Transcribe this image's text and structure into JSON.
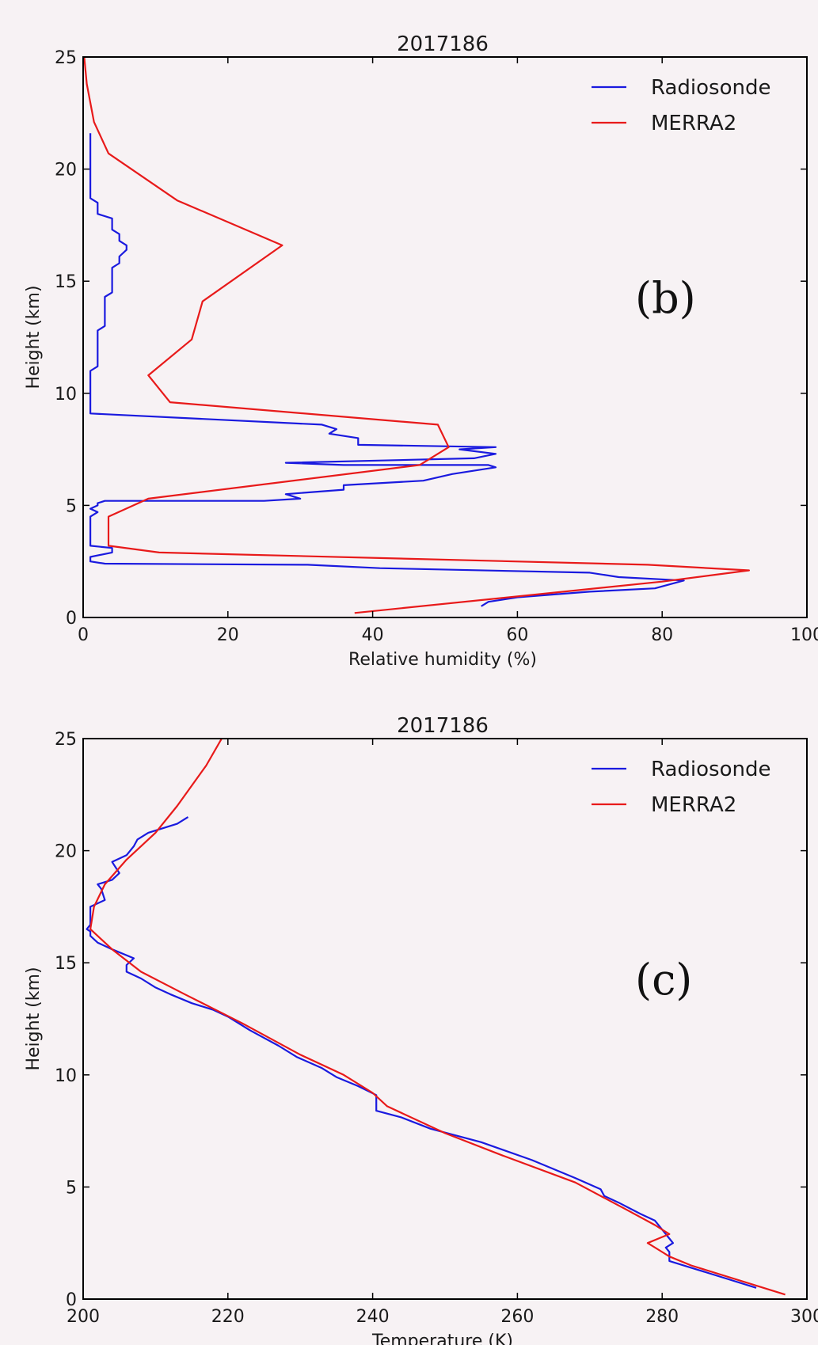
{
  "chart_data": [
    {
      "type": "line",
      "title": "2017186",
      "xlabel": "Relative humidity (%)",
      "ylabel": "Height (km)",
      "xlim": [
        0,
        100
      ],
      "ylim": [
        0,
        25
      ],
      "xticks": [
        0,
        20,
        40,
        60,
        80,
        100
      ],
      "xtick_labels": [
        "0",
        "20",
        "40",
        "60",
        "80",
        "100"
      ],
      "yticks": [
        0,
        5,
        10,
        15,
        20,
        25
      ],
      "ytick_labels": [
        "0",
        "5",
        "10",
        "15",
        "20",
        "25"
      ],
      "legend_position": "top-right",
      "annotation": "(b)",
      "grid": false,
      "series": [
        {
          "name": "Radiosonde",
          "color": "#1a1adf",
          "x": [
            55,
            56,
            60,
            70,
            79,
            83,
            74,
            70,
            41,
            31,
            3,
            1,
            1,
            4,
            4,
            1,
            1,
            2,
            1,
            2,
            2,
            3,
            25,
            30,
            28,
            36,
            36,
            47,
            51,
            57,
            56,
            36,
            28,
            54,
            57,
            52,
            57,
            38,
            38,
            34,
            35,
            33,
            1,
            1,
            2,
            2,
            3,
            3,
            4,
            4,
            5,
            5,
            6,
            6,
            5,
            5,
            4,
            4,
            2,
            2,
            1,
            1
          ],
          "y": [
            0.5,
            0.7,
            0.9,
            1.15,
            1.3,
            1.65,
            1.8,
            2.0,
            2.2,
            2.35,
            2.4,
            2.5,
            2.7,
            2.9,
            3.1,
            3.2,
            4.5,
            4.7,
            4.85,
            5.0,
            5.1,
            5.2,
            5.2,
            5.3,
            5.5,
            5.7,
            5.9,
            6.1,
            6.4,
            6.7,
            6.8,
            6.8,
            6.9,
            7.1,
            7.3,
            7.5,
            7.6,
            7.7,
            8.0,
            8.2,
            8.4,
            8.6,
            9.1,
            11.0,
            11.2,
            12.8,
            13.0,
            14.3,
            14.5,
            15.6,
            15.8,
            16.1,
            16.4,
            16.6,
            16.8,
            17.1,
            17.3,
            17.8,
            18.0,
            18.5,
            18.7,
            21.6
          ]
        },
        {
          "name": "MERRA2",
          "color": "#e81a1a",
          "x": [
            37.5,
            80,
            92,
            78,
            10.5,
            3.5,
            3.5,
            3.5,
            9,
            46.5,
            50.5,
            49,
            12,
            9,
            15,
            16.5,
            27.5,
            13,
            3.5,
            1.5,
            0.5,
            0
          ],
          "y": [
            0.2,
            1.6,
            2.1,
            2.35,
            2.9,
            3.2,
            3.5,
            4.5,
            5.3,
            6.8,
            7.6,
            8.6,
            9.6,
            10.8,
            12.4,
            14.1,
            16.6,
            18.6,
            20.7,
            22.1,
            23.8,
            25.5
          ]
        }
      ]
    },
    {
      "type": "line",
      "title": "2017186",
      "xlabel": "Temperature (K)",
      "ylabel": "Height (km)",
      "xlim": [
        200,
        300
      ],
      "ylim": [
        0,
        25
      ],
      "xticks": [
        200,
        220,
        240,
        260,
        280,
        300
      ],
      "xtick_labels": [
        "200",
        "220",
        "240",
        "260",
        "280",
        "300"
      ],
      "yticks": [
        0,
        5,
        10,
        15,
        20,
        25
      ],
      "ytick_labels": [
        "0",
        "5",
        "10",
        "15",
        "20",
        "25"
      ],
      "legend_position": "top-right",
      "annotation": "(c)",
      "grid": false,
      "series": [
        {
          "name": "Radiosonde",
          "color": "#1a1adf",
          "x": [
            293,
            289,
            284,
            281,
            281,
            280.5,
            281.5,
            281,
            280.5,
            280,
            279,
            277,
            274,
            272,
            271.5,
            268,
            262,
            255,
            248,
            244,
            240.5,
            240.5,
            240.5,
            238,
            235,
            233,
            229.5,
            227,
            223,
            220,
            218,
            215,
            212,
            210,
            208,
            206,
            206,
            207,
            204,
            202,
            201,
            201,
            200.5,
            201,
            201,
            203,
            202.5,
            202,
            204,
            205,
            204,
            206,
            207,
            207.5,
            209,
            213,
            214.5
          ],
          "y": [
            0.5,
            0.9,
            1.4,
            1.7,
            2.1,
            2.3,
            2.5,
            2.7,
            2.9,
            3.1,
            3.5,
            3.8,
            4.3,
            4.6,
            4.9,
            5.4,
            6.2,
            7.0,
            7.6,
            8.1,
            8.4,
            8.7,
            9.1,
            9.5,
            9.9,
            10.3,
            10.8,
            11.3,
            12.0,
            12.6,
            12.9,
            13.2,
            13.6,
            13.9,
            14.3,
            14.6,
            14.9,
            15.2,
            15.6,
            15.9,
            16.2,
            16.4,
            16.5,
            16.7,
            17.5,
            17.8,
            18.3,
            18.5,
            18.7,
            19.0,
            19.5,
            19.8,
            20.2,
            20.5,
            20.8,
            21.2,
            21.5
          ]
        },
        {
          "name": "MERRA2",
          "color": "#e81a1a",
          "x": [
            297,
            284,
            281,
            280,
            278,
            279.5,
            281,
            279,
            275,
            268,
            258,
            250,
            242,
            240,
            236,
            230,
            222,
            214,
            208,
            204,
            202,
            201,
            201.5,
            203,
            206,
            210,
            213,
            217,
            219.5
          ],
          "y": [
            0.2,
            1.5,
            1.9,
            2.1,
            2.5,
            2.7,
            2.9,
            3.3,
            4.0,
            5.2,
            6.4,
            7.4,
            8.6,
            9.2,
            10.0,
            10.9,
            12.3,
            13.6,
            14.6,
            15.6,
            16.2,
            16.5,
            17.5,
            18.5,
            19.6,
            20.8,
            22.0,
            23.8,
            25.2
          ]
        }
      ]
    }
  ]
}
